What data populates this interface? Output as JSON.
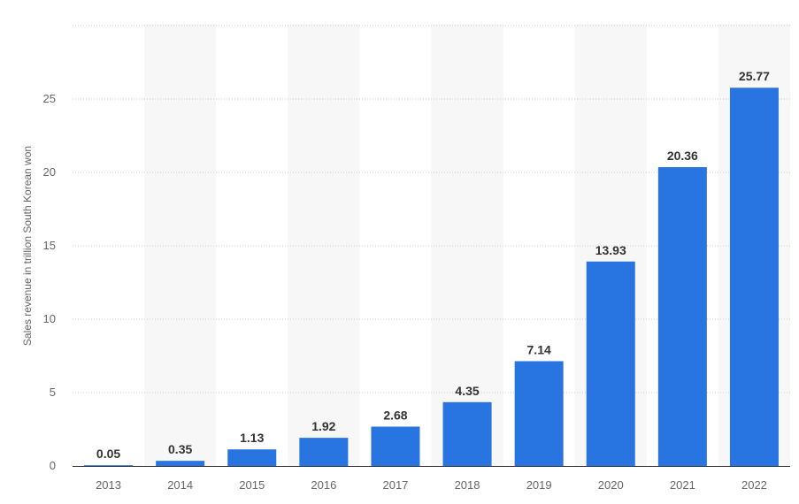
{
  "chart_data": {
    "type": "bar",
    "categories": [
      "2013",
      "2014",
      "2015",
      "2016",
      "2017",
      "2018",
      "2019",
      "2020",
      "2021",
      "2022"
    ],
    "values": [
      0.05,
      0.35,
      1.13,
      1.92,
      2.68,
      4.35,
      7.14,
      13.93,
      20.36,
      25.77
    ],
    "value_labels": [
      "0.05",
      "0.35",
      "1.13",
      "1.92",
      "2.68",
      "4.35",
      "7.14",
      "13.93",
      "20.36",
      "25.77"
    ],
    "ylabel": "Sales revenue in trillion South Korean won",
    "xlabel": "",
    "ylim": [
      0,
      30
    ],
    "yticks": [
      0,
      5,
      10,
      15,
      20,
      25
    ],
    "grid": true,
    "colors": {
      "bar": "#2874e0",
      "band": "#f7f7f7",
      "grid": "#cccccc",
      "axis": "#333333",
      "tick_text": "#666666",
      "label_text": "#333333"
    }
  }
}
